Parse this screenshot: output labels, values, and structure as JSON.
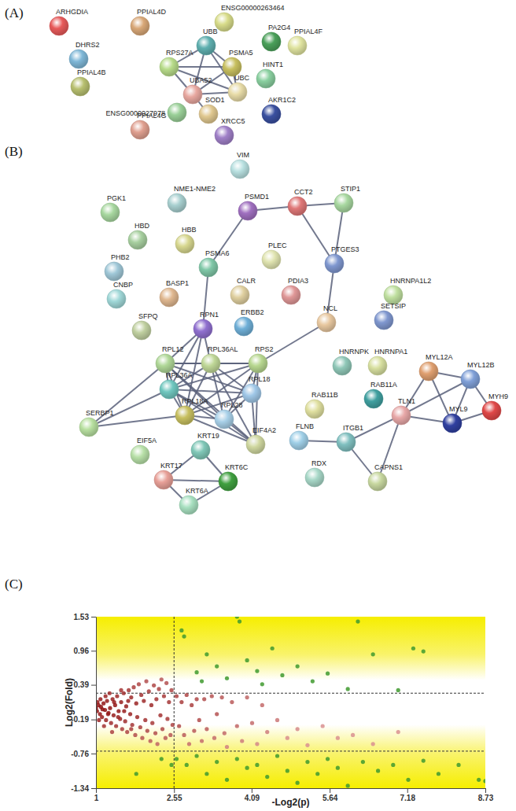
{
  "panel_labels": [
    "(A)",
    "(B)",
    "(C)"
  ],
  "network_a": {
    "nodes": [
      "ARHGDIA",
      "PPIAL4D",
      "ENSG00000263464",
      "DHRS2",
      "UBB",
      "PA2G4",
      "PPIAL4F",
      "RPS27A",
      "PSMA5",
      "HINT1",
      "PPIAL4B",
      "UBA52",
      "UBC",
      "ENSG0000027978",
      "SOD1",
      "AKR1C2",
      "PPIAL4G",
      "XRCC5"
    ],
    "edges": [
      [
        "UBB",
        "RPS27A"
      ],
      [
        "UBB",
        "PSMA5"
      ],
      [
        "UBB",
        "UBA52"
      ],
      [
        "UBB",
        "UBC"
      ],
      [
        "RPS27A",
        "PSMA5"
      ],
      [
        "RPS27A",
        "UBA52"
      ],
      [
        "RPS27A",
        "UBC"
      ],
      [
        "PSMA5",
        "UBA52"
      ],
      [
        "PSMA5",
        "UBC"
      ],
      [
        "UBA52",
        "UBC"
      ],
      [
        "UBA52",
        "SOD1"
      ]
    ]
  },
  "network_b": {
    "nodes": [
      "VIM",
      "PGK1",
      "NME1-NME2",
      "PSMD1",
      "CCT2",
      "STIP1",
      "HBD",
      "HBB",
      "PHB2",
      "PSMA6",
      "PLEC",
      "PTGES3",
      "CNBP",
      "BASP1",
      "CALR",
      "PDIA3",
      "HNRNPA1L2",
      "SFPQ",
      "RPN1",
      "ERBB2",
      "NCL",
      "SETSIP",
      "HNRNPK",
      "HNRNPA1",
      "RPL12",
      "RPL36AL",
      "RPS2",
      "MYL12A",
      "MYL12B",
      "MYH9",
      "RAB11A",
      "RAB11B",
      "RPL36A",
      "RPL18",
      "TLN1",
      "MYL9",
      "RPL18A",
      "RPL28",
      "SERBP1",
      "FLNB",
      "ITGB1",
      "EIF4A2",
      "EIF5A",
      "KRT19",
      "KRT17",
      "KRT6C",
      "CAPNS1",
      "RDX",
      "KRT6A"
    ],
    "edges": [
      [
        "PSMD1",
        "PSMA6"
      ],
      [
        "PSMD1",
        "CCT2"
      ],
      [
        "CCT2",
        "STIP1"
      ],
      [
        "CCT2",
        "PTGES3"
      ],
      [
        "STIP1",
        "PTGES3"
      ],
      [
        "PTGES3",
        "NCL"
      ],
      [
        "NCL",
        "RPS2"
      ],
      [
        "PSMA6",
        "RPN1"
      ],
      [
        "RPN1",
        "RPL12"
      ],
      [
        "RPN1",
        "RPL36AL"
      ],
      [
        "RPN1",
        "RPL36A"
      ],
      [
        "RPN1",
        "RPL18A"
      ],
      [
        "RPL12",
        "RPL36AL"
      ],
      [
        "RPL12",
        "RPS2"
      ],
      [
        "RPL12",
        "RPL36A"
      ],
      [
        "RPL12",
        "RPL18"
      ],
      [
        "RPL12",
        "RPL18A"
      ],
      [
        "RPL12",
        "RPL28"
      ],
      [
        "RPL36AL",
        "RPS2"
      ],
      [
        "RPL36AL",
        "RPL36A"
      ],
      [
        "RPL36AL",
        "RPL18"
      ],
      [
        "RPL36AL",
        "RPL18A"
      ],
      [
        "RPL36AL",
        "RPL28"
      ],
      [
        "RPS2",
        "RPL36A"
      ],
      [
        "RPS2",
        "RPL18"
      ],
      [
        "RPS2",
        "RPL18A"
      ],
      [
        "RPS2",
        "RPL28"
      ],
      [
        "RPL36A",
        "RPL18"
      ],
      [
        "RPL36A",
        "RPL18A"
      ],
      [
        "RPL36A",
        "RPL28"
      ],
      [
        "RPL18",
        "RPL18A"
      ],
      [
        "RPL18",
        "RPL28"
      ],
      [
        "RPL18A",
        "RPL28"
      ],
      [
        "EIF4A2",
        "RPL12"
      ],
      [
        "EIF4A2",
        "RPL36A"
      ],
      [
        "EIF4A2",
        "RPL18A"
      ],
      [
        "EIF4A2",
        "RPL28"
      ],
      [
        "EIF4A2",
        "RPL18"
      ],
      [
        "EIF4A2",
        "RPS2"
      ],
      [
        "EIF4A2",
        "RPL36AL"
      ],
      [
        "SERBP1",
        "RPL12"
      ],
      [
        "SERBP1",
        "RPL36A"
      ],
      [
        "SERBP1",
        "RPL18A"
      ],
      [
        "KRT19",
        "KRT17"
      ],
      [
        "KRT19",
        "KRT6C"
      ],
      [
        "KRT17",
        "KRT6A"
      ],
      [
        "KRT6C",
        "KRT6A"
      ],
      [
        "KRT17",
        "KRT6C"
      ],
      [
        "FLNB",
        "ITGB1"
      ],
      [
        "ITGB1",
        "TLN1"
      ],
      [
        "ITGB1",
        "CAPNS1"
      ],
      [
        "TLN1",
        "CAPNS1"
      ],
      [
        "TLN1",
        "MYL12A"
      ],
      [
        "TLN1",
        "MYL12B"
      ],
      [
        "TLN1",
        "MYL9"
      ],
      [
        "MYL12A",
        "MYL12B"
      ],
      [
        "MYL12A",
        "MYL9"
      ],
      [
        "MYL12B",
        "MYL9"
      ],
      [
        "MYL12B",
        "MYH9"
      ],
      [
        "MYL9",
        "MYH9"
      ]
    ]
  },
  "chart_data": {
    "type": "scatter",
    "x_label": "-Log2(p)",
    "y_label": "Log2(Fold)",
    "xlim": [
      1,
      8.73
    ],
    "ylim": [
      -1.34,
      1.53
    ],
    "xticks": [
      1,
      2.55,
      4.09,
      5.64,
      7.18,
      8.73
    ],
    "yticks": [
      -1.34,
      -0.76,
      -0.19,
      0.39,
      0.96,
      1.53
    ],
    "reference_lines": {
      "x": [
        2.55
      ],
      "y": [
        0.25,
        -0.72
      ]
    },
    "x": [
      1,
      1.02,
      1.05,
      1.08,
      1.1,
      1.12,
      1.15,
      1.18,
      1.2,
      1.22,
      1.25,
      1.28,
      1.3,
      1.33,
      1.35,
      1.38,
      1.4,
      1.42,
      1.45,
      1.48,
      1.5,
      1.52,
      1.55,
      1.58,
      1.6,
      1.62,
      1.65,
      1.68,
      1.7,
      1.72,
      1.75,
      1.78,
      1.8,
      1.82,
      1.85,
      1.88,
      1.9,
      1.92,
      1.95,
      1.98,
      2,
      2.02,
      2.05,
      2.08,
      2.1,
      2.12,
      2.15,
      2.18,
      2.2,
      2.22,
      2.25,
      2.28,
      2.3,
      2.32,
      2.35,
      2.38,
      2.4,
      2.42,
      2.45,
      2.48,
      2.5,
      2.52,
      1.03,
      1.06,
      1.09,
      1.13,
      1.16,
      1.19,
      1.24,
      1.27,
      1.32,
      1.36,
      1.44,
      1.5,
      1.56,
      1.64,
      1.7,
      2.6,
      2.65,
      2.7,
      2.75,
      2.8,
      2.85,
      2.9,
      2.95,
      3,
      3.05,
      3.1,
      3.15,
      3.2,
      3.3,
      3.35,
      3.4,
      3.5,
      3.55,
      3.6,
      3.7,
      3.8,
      3.9,
      4,
      4.1,
      4.2,
      4.3,
      4.4,
      4.6,
      4.8,
      5,
      5.2,
      5.5,
      5.8,
      6.1,
      6.5,
      7,
      2.7,
      2.75,
      3,
      3.2,
      3.4,
      3.6,
      3.8,
      3.85,
      4,
      4.2,
      4.5,
      4.7,
      5,
      5.3,
      5.6,
      6,
      6.2,
      6.5,
      7,
      7.3,
      7.5,
      4.3,
      3.1,
      2.6,
      2.8,
      3,
      3.2,
      3.4,
      3.6,
      3.8,
      4,
      4.2,
      4.4,
      4.6,
      4.8,
      5,
      5.2,
      5.4,
      5.6,
      5.8,
      6,
      6.3,
      6.6,
      6.9,
      7.2,
      7.5,
      7.8,
      8.2,
      8.6,
      8.73,
      1.8,
      2.3,
      2.5
    ],
    "values": [
      0,
      -0.05,
      0.05,
      -0.1,
      0.02,
      -0.15,
      0.08,
      -0.03,
      -0.2,
      0.12,
      -0.08,
      0,
      -0.25,
      0.15,
      -0.12,
      0.05,
      -0.3,
      0.2,
      -0.05,
      -0.18,
      0.1,
      -0.35,
      0.25,
      -0.22,
      0.03,
      -0.4,
      0.3,
      -0.1,
      0.18,
      -0.28,
      0.35,
      -0.45,
      0.08,
      -0.15,
      0.4,
      -0.32,
      0.22,
      -0.5,
      0.12,
      -0.2,
      0.45,
      -0.38,
      0.28,
      -0.55,
      0.05,
      -0.25,
      0.38,
      -0.42,
      0.15,
      -0.6,
      0.32,
      -0.12,
      0.48,
      -0.35,
      0.2,
      -0.5,
      0.42,
      -0.18,
      0.1,
      -0.45,
      0.3,
      -0.28,
      0.1,
      -0.2,
      0.15,
      -0.02,
      -0.3,
      0.2,
      -0.1,
      0.25,
      -0.4,
      0.1,
      -0.15,
      0.3,
      -0.05,
      0.12,
      -0.35,
      0.2,
      -0.3,
      0.1,
      -0.45,
      0.22,
      -0.6,
      0.05,
      -0.38,
      0.15,
      -0.2,
      -0.55,
      0.15,
      -0.35,
      0.2,
      -0.5,
      -0.1,
      0.18,
      -0.42,
      -0.65,
      0.1,
      -0.3,
      -0.55,
      0.18,
      -0.25,
      -0.6,
      0.05,
      -0.4,
      -0.2,
      -0.5,
      -0.35,
      -0.62,
      -0.3,
      -0.5,
      -0.45,
      -0.6,
      -0.4,
      1.3,
      1.2,
      0.6,
      0.9,
      0.7,
      0.5,
      1.53,
      1.45,
      0.8,
      0.62,
      1,
      0.55,
      0.7,
      0.45,
      0.58,
      0.32,
      1.45,
      0.9,
      0.3,
      1,
      0.95,
      0.4,
      0.45,
      -0.85,
      -0.95,
      -0.8,
      -1.1,
      -0.9,
      -1.2,
      -0.85,
      -1,
      -0.95,
      -1.15,
      -0.8,
      -1.05,
      -1.25,
      -0.9,
      -1.1,
      -0.85,
      -1,
      -1.3,
      -0.9,
      -1.05,
      -0.95,
      -1.2,
      -0.88,
      -1.1,
      -0.95,
      -1.2,
      -1.22,
      -1.1,
      -0.85,
      -0.95
    ]
  }
}
